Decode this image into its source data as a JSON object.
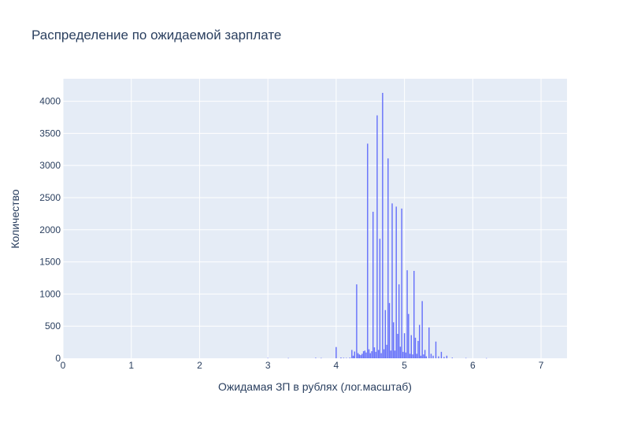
{
  "chart_data": {
    "type": "bar",
    "title": "Распределение по ожидаемой зарплате",
    "xlabel": "Ожидамая ЗП в рублях (лог.масштаб)",
    "ylabel": "Количество",
    "xlim": [
      0,
      7.38
    ],
    "ylim": [
      0,
      4350
    ],
    "xticks": [
      0,
      1,
      2,
      3,
      4,
      5,
      6,
      7
    ],
    "yticks": [
      0,
      500,
      1000,
      1500,
      2000,
      2500,
      3000,
      3500,
      4000
    ],
    "grid": true,
    "bar_color": "#636efa",
    "plot_bg": "#e5ecf6",
    "bins": [
      {
        "x": 3.0,
        "y": 5
      },
      {
        "x": 3.3,
        "y": 4
      },
      {
        "x": 3.7,
        "y": 8
      },
      {
        "x": 3.78,
        "y": 5
      },
      {
        "x": 4.0,
        "y": 175
      },
      {
        "x": 4.07,
        "y": 12
      },
      {
        "x": 4.11,
        "y": 8
      },
      {
        "x": 4.15,
        "y": 6
      },
      {
        "x": 4.2,
        "y": 10
      },
      {
        "x": 4.23,
        "y": 130
      },
      {
        "x": 4.25,
        "y": 40
      },
      {
        "x": 4.27,
        "y": 105
      },
      {
        "x": 4.3,
        "y": 1150
      },
      {
        "x": 4.32,
        "y": 80
      },
      {
        "x": 4.34,
        "y": 60
      },
      {
        "x": 4.36,
        "y": 50
      },
      {
        "x": 4.38,
        "y": 70
      },
      {
        "x": 4.4,
        "y": 110
      },
      {
        "x": 4.42,
        "y": 120
      },
      {
        "x": 4.44,
        "y": 90
      },
      {
        "x": 4.46,
        "y": 3340
      },
      {
        "x": 4.48,
        "y": 140
      },
      {
        "x": 4.5,
        "y": 80
      },
      {
        "x": 4.52,
        "y": 110
      },
      {
        "x": 4.54,
        "y": 2280
      },
      {
        "x": 4.56,
        "y": 170
      },
      {
        "x": 4.58,
        "y": 100
      },
      {
        "x": 4.6,
        "y": 3780
      },
      {
        "x": 4.62,
        "y": 130
      },
      {
        "x": 4.64,
        "y": 1860
      },
      {
        "x": 4.66,
        "y": 80
      },
      {
        "x": 4.68,
        "y": 4130
      },
      {
        "x": 4.7,
        "y": 140
      },
      {
        "x": 4.72,
        "y": 750
      },
      {
        "x": 4.74,
        "y": 210
      },
      {
        "x": 4.76,
        "y": 3110
      },
      {
        "x": 4.78,
        "y": 860
      },
      {
        "x": 4.8,
        "y": 120
      },
      {
        "x": 4.82,
        "y": 2410
      },
      {
        "x": 4.84,
        "y": 560
      },
      {
        "x": 4.86,
        "y": 120
      },
      {
        "x": 4.88,
        "y": 2360
      },
      {
        "x": 4.9,
        "y": 380
      },
      {
        "x": 4.92,
        "y": 1150
      },
      {
        "x": 4.94,
        "y": 180
      },
      {
        "x": 4.96,
        "y": 2330
      },
      {
        "x": 4.98,
        "y": 100
      },
      {
        "x": 5.0,
        "y": 390
      },
      {
        "x": 5.02,
        "y": 90
      },
      {
        "x": 5.04,
        "y": 1370
      },
      {
        "x": 5.06,
        "y": 690
      },
      {
        "x": 5.08,
        "y": 70
      },
      {
        "x": 5.1,
        "y": 360
      },
      {
        "x": 5.12,
        "y": 60
      },
      {
        "x": 5.14,
        "y": 1360
      },
      {
        "x": 5.16,
        "y": 320
      },
      {
        "x": 5.18,
        "y": 70
      },
      {
        "x": 5.2,
        "y": 270
      },
      {
        "x": 5.22,
        "y": 520
      },
      {
        "x": 5.24,
        "y": 40
      },
      {
        "x": 5.26,
        "y": 890
      },
      {
        "x": 5.28,
        "y": 60
      },
      {
        "x": 5.3,
        "y": 130
      },
      {
        "x": 5.32,
        "y": 30
      },
      {
        "x": 5.36,
        "y": 480
      },
      {
        "x": 5.39,
        "y": 70
      },
      {
        "x": 5.42,
        "y": 40
      },
      {
        "x": 5.46,
        "y": 260
      },
      {
        "x": 5.5,
        "y": 30
      },
      {
        "x": 5.54,
        "y": 100
      },
      {
        "x": 5.58,
        "y": 20
      },
      {
        "x": 5.62,
        "y": 40
      },
      {
        "x": 5.7,
        "y": 10
      },
      {
        "x": 5.9,
        "y": 5
      },
      {
        "x": 6.2,
        "y": 3
      }
    ]
  }
}
